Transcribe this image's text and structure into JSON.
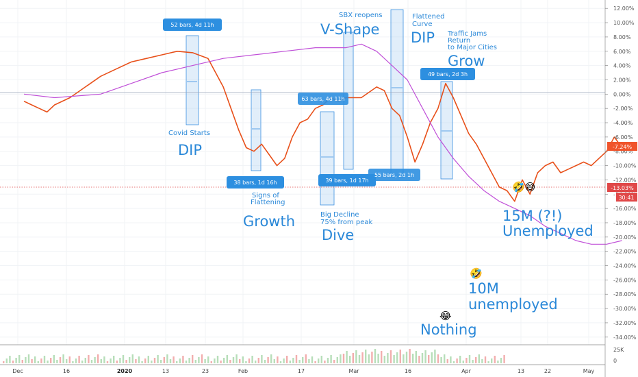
{
  "chart_data": {
    "type": "line",
    "ylim": [
      -34.5,
      12.5
    ],
    "y_ticks": [
      "12.00%",
      "10.00%",
      "8.00%",
      "6.00%",
      "4.00%",
      "2.00%",
      "0.00%",
      "-2.00%",
      "-4.00%",
      "-6.00%",
      "-8.00%",
      "-10.00%",
      "-12.00%",
      "-14.00%",
      "-16.00%",
      "-18.00%",
      "-20.00%",
      "-22.00%",
      "-24.00%",
      "-26.00%",
      "-28.00%",
      "-30.00%",
      "-32.00%",
      "-34.00%"
    ],
    "x_ticks": [
      {
        "label": "Dec",
        "bold": false
      },
      {
        "label": "16",
        "bold": false
      },
      {
        "label": "2020",
        "bold": true
      },
      {
        "label": "13",
        "bold": false
      },
      {
        "label": "23",
        "bold": false
      },
      {
        "label": "Feb",
        "bold": false
      },
      {
        "label": "17",
        "bold": false
      },
      {
        "label": "Mar",
        "bold": false
      },
      {
        "label": "16",
        "bold": false
      },
      {
        "label": "Apr",
        "bold": false
      },
      {
        "label": "13",
        "bold": false
      },
      {
        "label": "22",
        "bold": false
      },
      {
        "label": "May",
        "bold": false
      }
    ],
    "price_labels": {
      "current": "-7.24%",
      "compare": "-13.03%",
      "countdown": "30:41"
    },
    "volume_ticks": [
      "25K",
      "0"
    ],
    "series": [
      {
        "color": "#e8501a",
        "points": [
          [
            -5.0,
            -1.0
          ],
          [
            -4.5,
            -1.5
          ],
          [
            -4.0,
            -2.0
          ],
          [
            -3.5,
            -2.5
          ],
          [
            -3.0,
            -1.5
          ],
          [
            -2.0,
            -0.5
          ],
          [
            -1.0,
            1.0
          ],
          [
            0.0,
            2.5
          ],
          [
            1.0,
            3.5
          ],
          [
            2.0,
            4.5
          ],
          [
            3.0,
            5.0
          ],
          [
            4.0,
            5.5
          ],
          [
            5.0,
            6.0
          ],
          [
            6.0,
            5.8
          ],
          [
            7.0,
            5.0
          ],
          [
            7.5,
            3.0
          ],
          [
            8.0,
            1.0
          ],
          [
            8.5,
            -2.0
          ],
          [
            9.0,
            -5.0
          ],
          [
            9.5,
            -7.5
          ],
          [
            10.0,
            -8.0
          ],
          [
            10.5,
            -7.0
          ],
          [
            11.0,
            -8.5
          ],
          [
            11.5,
            -10.0
          ],
          [
            12.0,
            -9.0
          ],
          [
            12.5,
            -6.0
          ],
          [
            13.0,
            -4.0
          ],
          [
            13.5,
            -3.5
          ],
          [
            14.0,
            -2.0
          ],
          [
            14.5,
            -1.5
          ],
          [
            15.0,
            -0.5
          ],
          [
            15.5,
            -1.0
          ],
          [
            16.0,
            -0.5
          ],
          [
            17.0,
            -0.5
          ],
          [
            18.0,
            1.0
          ],
          [
            18.5,
            0.5
          ],
          [
            19.0,
            -2.0
          ],
          [
            19.5,
            -3.0
          ],
          [
            20.0,
            -6.0
          ],
          [
            20.5,
            -9.5
          ],
          [
            21.0,
            -7.0
          ],
          [
            21.5,
            -4.0
          ],
          [
            22.0,
            -2.0
          ],
          [
            22.5,
            1.5
          ],
          [
            23.0,
            -0.5
          ],
          [
            23.5,
            -3.0
          ],
          [
            24.0,
            -5.5
          ],
          [
            24.5,
            -7.0
          ],
          [
            25.0,
            -9.0
          ],
          [
            25.5,
            -11.0
          ],
          [
            26.0,
            -13.0
          ],
          [
            26.5,
            -13.5
          ],
          [
            27.0,
            -15.0
          ],
          [
            27.5,
            -12.0
          ],
          [
            28.0,
            -14.0
          ],
          [
            28.5,
            -11.0
          ],
          [
            29.0,
            -10.0
          ],
          [
            29.5,
            -9.5
          ],
          [
            30.0,
            -11.0
          ],
          [
            30.5,
            -10.5
          ],
          [
            31.0,
            -10.0
          ],
          [
            31.5,
            -9.5
          ],
          [
            32.0,
            -10.0
          ],
          [
            32.5,
            -9.0
          ],
          [
            33.0,
            -8.0
          ],
          [
            33.5,
            -6.0
          ],
          [
            34.0,
            -7.5
          ],
          [
            34.5,
            -7.0
          ]
        ]
      },
      {
        "color": "#c050d8",
        "points": [
          [
            -5.0,
            0.0
          ],
          [
            -3.0,
            -0.5
          ],
          [
            0.0,
            0.0
          ],
          [
            2.0,
            1.5
          ],
          [
            4.0,
            3.0
          ],
          [
            6.0,
            4.0
          ],
          [
            8.0,
            5.0
          ],
          [
            10.0,
            5.5
          ],
          [
            12.0,
            6.0
          ],
          [
            14.0,
            6.5
          ],
          [
            16.0,
            6.5
          ],
          [
            17.0,
            7.0
          ],
          [
            18.0,
            6.0
          ],
          [
            19.0,
            4.0
          ],
          [
            20.0,
            2.0
          ],
          [
            21.0,
            -2.0
          ],
          [
            22.0,
            -6.0
          ],
          [
            23.0,
            -9.0
          ],
          [
            24.0,
            -11.5
          ],
          [
            25.0,
            -13.5
          ],
          [
            26.0,
            -15.0
          ],
          [
            27.0,
            -16.0
          ],
          [
            28.0,
            -17.0
          ],
          [
            29.0,
            -18.5
          ],
          [
            30.0,
            -19.5
          ],
          [
            31.0,
            -20.5
          ],
          [
            32.0,
            -21.0
          ],
          [
            33.0,
            -21.0
          ],
          [
            34.0,
            -20.5
          ]
        ]
      }
    ]
  },
  "annotations": {
    "box_dip1": "52 bars, 4d 11h",
    "covid_starts": "Covid Starts",
    "dip1": "DIP",
    "box_growth": "38 bars, 1d 16h",
    "signs_of": "Signs of",
    "flattening": "Flattening",
    "growth": "Growth",
    "sbx_reopens": "SBX reopens",
    "v_shape": "V-Shape",
    "box_vshape": "63 bars, 4d 11h",
    "box_dive": "39 bars, 1d 17h",
    "big_decline": "Big Decline",
    "peak_pct": "75% from peak",
    "dive": "Dive",
    "box_dip2": "55 bars, 2d 1h",
    "flattened": "Flattened",
    "curve": "Curve",
    "dip2": "DIP",
    "traffic1": "Traffic Jams",
    "traffic2": "Return",
    "traffic3": "to Major Cities",
    "grow": "Grow",
    "box_grow": "49 bars, 2d 3h",
    "fifteen_m": "15M (?!)",
    "unemployed_a": "Unemployed",
    "ten_m": "10M",
    "unemployed_b": "unemployed",
    "nothing": "Nothing",
    "emoji_laugh": "🤣😅",
    "emoji_rofl": "🤣",
    "emoji_joy": "😂"
  },
  "colors": {
    "price": "#e8501a",
    "compare": "#2a9d8f",
    "ma_fast": "#f0a040",
    "ma_slow": "#c050d8",
    "annotation": "#2a88d8",
    "box": "#2d8fe0",
    "current_label": "#f0542b",
    "compare_label": "#e04848"
  }
}
